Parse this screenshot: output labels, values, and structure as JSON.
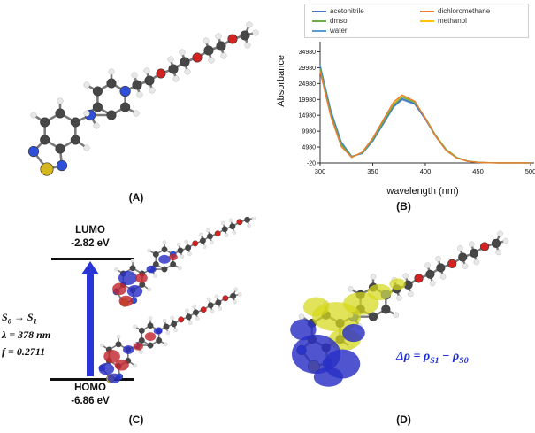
{
  "panels": {
    "a": "(A)",
    "b": "(B)",
    "c": "(C)",
    "d": "(D)"
  },
  "colors": {
    "carbon": "#474747",
    "hydrogen": "#e8e8e8",
    "nitrogen": "#2f4fd8",
    "oxygen": "#d32222",
    "sulfur": "#d4b61e",
    "lobe-blue": "#2a2fc4",
    "lobe-red": "#c22730",
    "lobe-yellow": "#d6d81c",
    "arrow-blue": "#2a35d8",
    "delta-blue": "#1b2ad6"
  },
  "chart_data": {
    "type": "line",
    "title": "",
    "xlabel": "wavelength (nm)",
    "ylabel": "Absorbance",
    "xlim": [
      300,
      500
    ],
    "ylim": [
      -20,
      34980
    ],
    "xticks": [
      300,
      350,
      400,
      450,
      500
    ],
    "yticks": [
      34980,
      29980,
      24980,
      19980,
      14980,
      9980,
      4980,
      -20
    ],
    "grid": false,
    "legend_position": "top",
    "x": [
      300,
      310,
      320,
      330,
      340,
      350,
      360,
      370,
      378,
      390,
      400,
      410,
      420,
      430,
      440,
      450,
      460,
      470,
      480,
      490,
      500
    ],
    "series": [
      {
        "name": "acetonitrile",
        "color": "#4472c4",
        "values": [
          30200,
          16200,
          6300,
          2000,
          3000,
          7000,
          12500,
          17900,
          20200,
          18600,
          13800,
          8300,
          4000,
          1600,
          550,
          180,
          50,
          10,
          0,
          0,
          0
        ]
      },
      {
        "name": "dichloromethane",
        "color": "#ed7d31",
        "values": [
          28800,
          14800,
          5200,
          1700,
          3400,
          7800,
          13600,
          19200,
          21400,
          19400,
          14000,
          8200,
          3800,
          1500,
          500,
          150,
          40,
          10,
          0,
          0,
          0
        ]
      },
      {
        "name": "dmso",
        "color": "#70ad47",
        "values": [
          29600,
          15600,
          5900,
          1900,
          3200,
          7300,
          12900,
          18300,
          20700,
          19000,
          14200,
          8600,
          4200,
          1700,
          600,
          200,
          60,
          15,
          0,
          0,
          0
        ]
      },
      {
        "name": "methanol",
        "color": "#ffc000",
        "values": [
          29200,
          15200,
          5600,
          1800,
          3300,
          7500,
          13200,
          18600,
          20900,
          19200,
          14100,
          8500,
          4100,
          1650,
          580,
          190,
          55,
          12,
          0,
          0,
          0
        ]
      },
      {
        "name": "water",
        "color": "#5b9bd5",
        "values": [
          30800,
          16800,
          6700,
          2100,
          2900,
          6800,
          12200,
          17600,
          19900,
          18400,
          13700,
          8200,
          3900,
          1550,
          520,
          170,
          45,
          10,
          0,
          0,
          0
        ]
      }
    ]
  },
  "panel_c": {
    "lumo_title": "LUMO",
    "lumo_energy": "-2.82 eV",
    "homo_title": "HOMO",
    "homo_energy": "-6.86 eV",
    "transition": {
      "from_base": "S",
      "from_sub": "0",
      "arrow": "→",
      "to_base": "S",
      "to_sub": "1"
    },
    "lambda_line": "λ = 378 nm",
    "f_line": "f = 0.2711"
  },
  "panel_d": {
    "p1": "Δρ = ρ",
    "s1": "S1",
    "p2": " − ρ",
    "s2": "S0"
  }
}
